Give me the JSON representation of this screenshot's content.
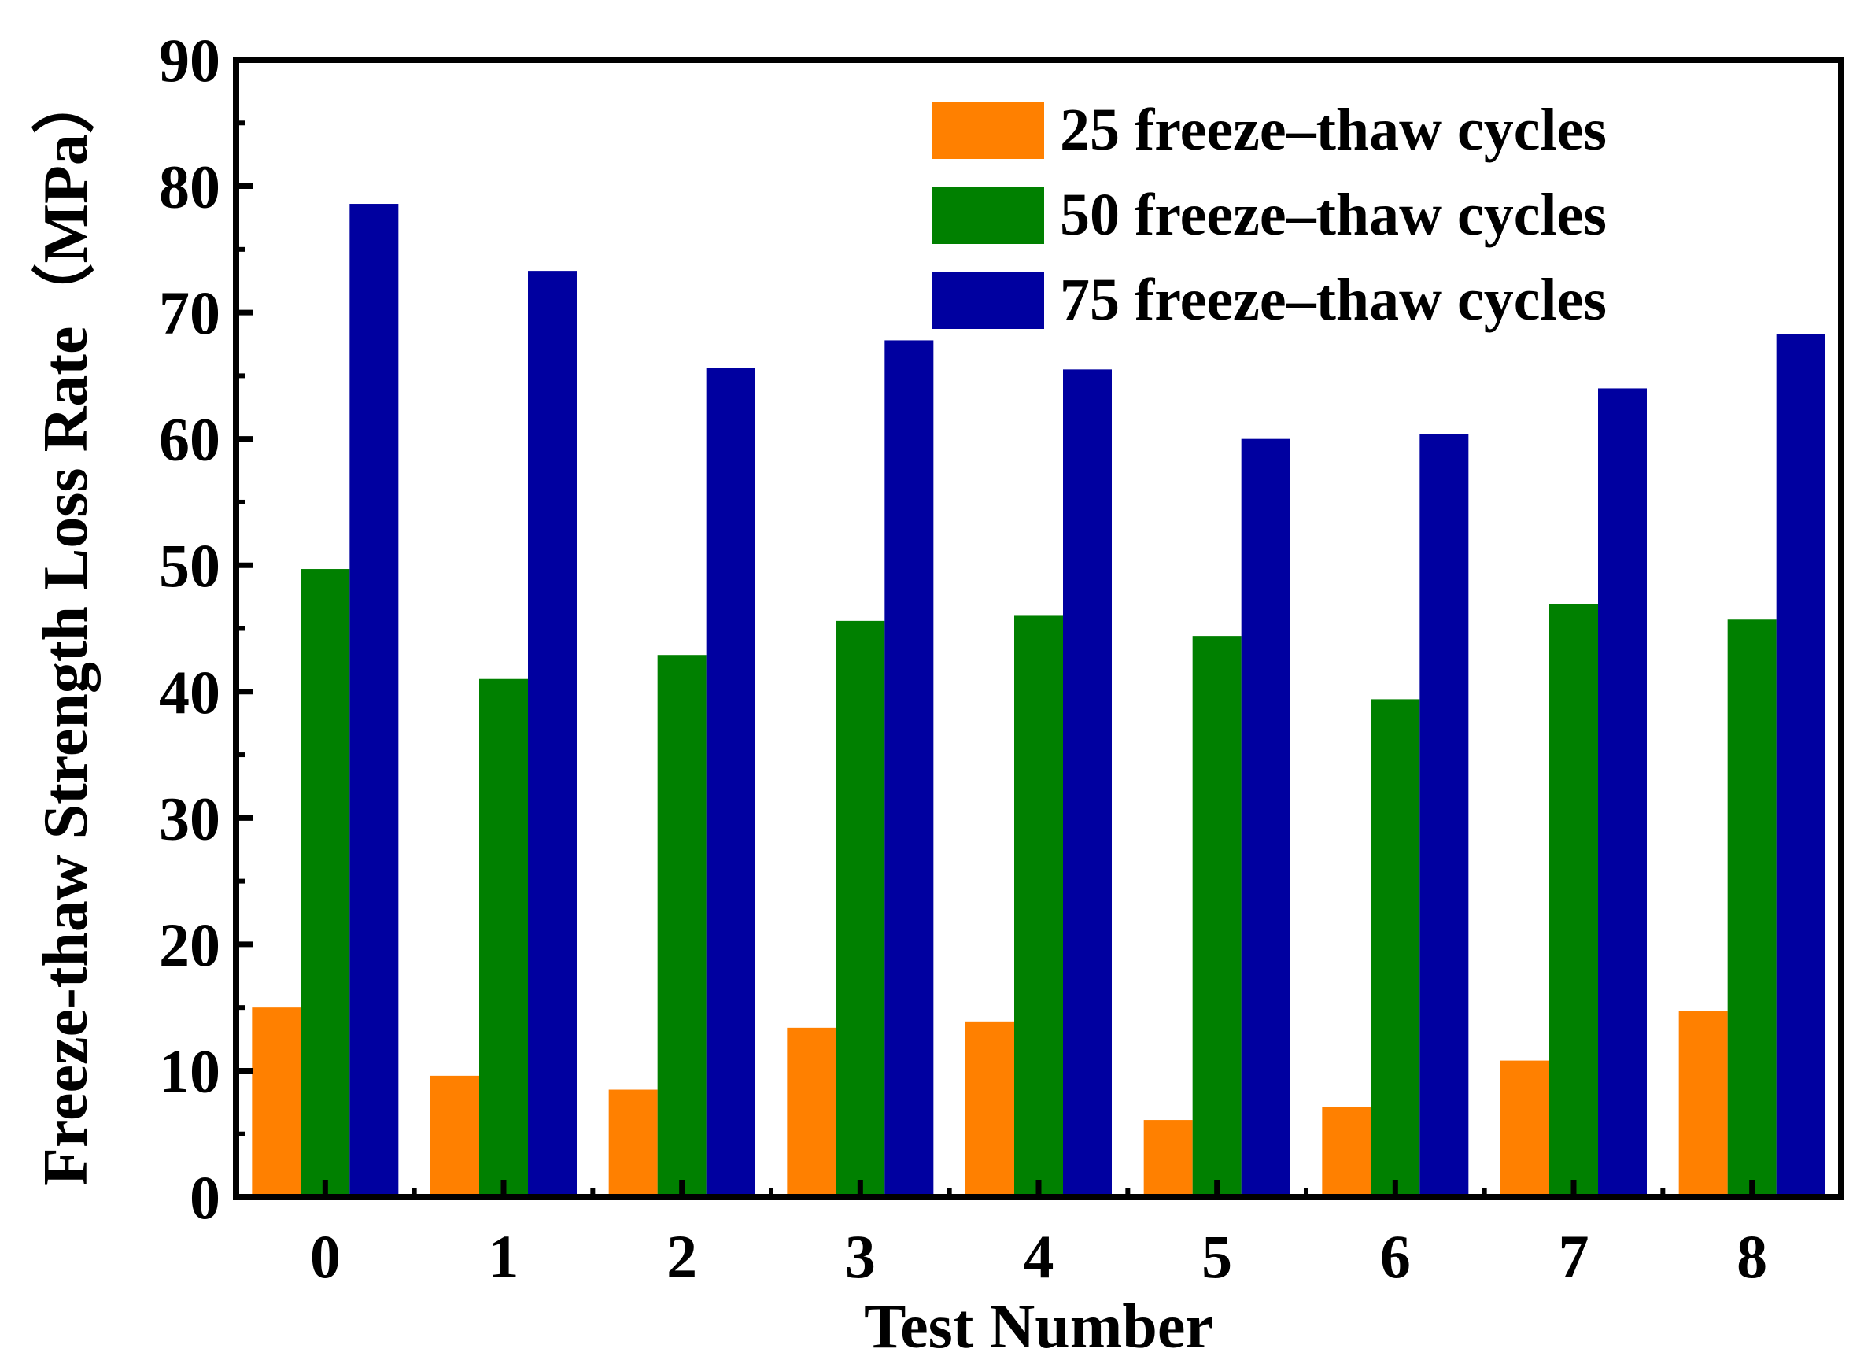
{
  "chart_data": {
    "type": "bar",
    "title": "",
    "xlabel": "Test Number",
    "ylabel": "Freeze-thaw Strength Loss Rate（MPa）",
    "categories": [
      "0",
      "1",
      "2",
      "3",
      "4",
      "5",
      "6",
      "7",
      "8"
    ],
    "ylim": [
      0,
      90
    ],
    "yticks": [
      "0",
      "10",
      "20",
      "30",
      "40",
      "50",
      "60",
      "70",
      "80",
      "90"
    ],
    "legend_position": "top-right",
    "grid": false,
    "series": [
      {
        "name": "25 freeze–thaw cycles",
        "color": "#FF8000",
        "values": [
          15.0,
          9.6,
          8.5,
          13.4,
          13.9,
          6.1,
          7.1,
          10.8,
          14.7
        ]
      },
      {
        "name": "50 freeze–thaw cycles",
        "color": "#008000",
        "values": [
          49.7,
          41.0,
          42.9,
          45.6,
          46.0,
          44.4,
          39.4,
          46.9,
          45.7
        ]
      },
      {
        "name": "75 freeze–thaw cycles",
        "color": "#0000A0",
        "values": [
          78.6,
          73.3,
          65.6,
          67.8,
          65.5,
          60.0,
          60.4,
          64.0,
          68.3
        ]
      }
    ]
  }
}
